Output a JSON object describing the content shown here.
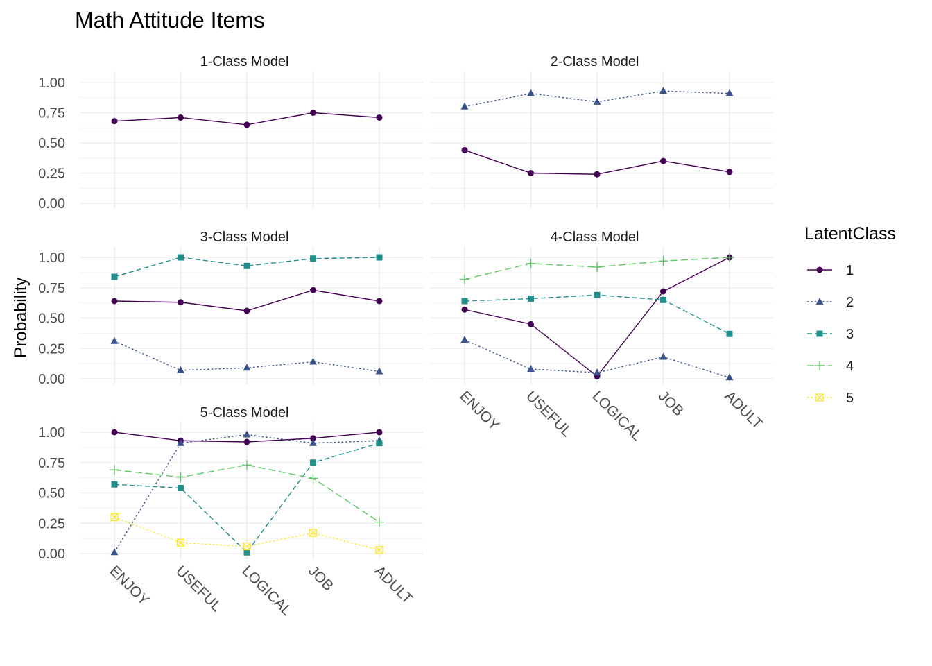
{
  "chart_data": {
    "type": "line",
    "title": "Math Attitude Items",
    "ylabel": "Probability",
    "xlabel": "",
    "categories": [
      "ENJOY",
      "USEFUL",
      "LOGICAL",
      "JOB",
      "ADULT"
    ],
    "ylim": [
      0,
      1
    ],
    "yticks": [
      "0.00",
      "0.25",
      "0.50",
      "0.75",
      "1.00"
    ],
    "grid": true,
    "legend": {
      "title": "LatentClass",
      "position": "right",
      "entries": [
        "1",
        "2",
        "3",
        "4",
        "5"
      ]
    },
    "series_styles": {
      "1": {
        "color": "#440154",
        "marker": "circle",
        "dash": "solid"
      },
      "2": {
        "color": "#3B528B",
        "marker": "triangle",
        "dash": "dotted"
      },
      "3": {
        "color": "#21908C",
        "marker": "square",
        "dash": "dashed"
      },
      "4": {
        "color": "#5DC863",
        "marker": "plus",
        "dash": "longdash"
      },
      "5": {
        "color": "#FDE725",
        "marker": "boxed-x",
        "dash": "dotted"
      }
    },
    "panels": [
      {
        "title": "1-Class Model",
        "series": [
          {
            "name": "1",
            "values": [
              0.68,
              0.71,
              0.65,
              0.75,
              0.71
            ]
          }
        ]
      },
      {
        "title": "2-Class Model",
        "series": [
          {
            "name": "1",
            "values": [
              0.44,
              0.25,
              0.24,
              0.35,
              0.26
            ]
          },
          {
            "name": "2",
            "values": [
              0.8,
              0.91,
              0.84,
              0.93,
              0.91
            ]
          }
        ]
      },
      {
        "title": "3-Class Model",
        "series": [
          {
            "name": "1",
            "values": [
              0.64,
              0.63,
              0.56,
              0.73,
              0.64
            ]
          },
          {
            "name": "2",
            "values": [
              0.31,
              0.07,
              0.09,
              0.14,
              0.06
            ]
          },
          {
            "name": "3",
            "values": [
              0.84,
              1.0,
              0.93,
              0.99,
              1.0
            ]
          }
        ]
      },
      {
        "title": "4-Class Model",
        "series": [
          {
            "name": "1",
            "values": [
              0.57,
              0.45,
              0.02,
              0.72,
              1.0
            ]
          },
          {
            "name": "2",
            "values": [
              0.32,
              0.08,
              0.05,
              0.18,
              0.01
            ]
          },
          {
            "name": "3",
            "values": [
              0.64,
              0.66,
              0.69,
              0.65,
              0.37
            ]
          },
          {
            "name": "4",
            "values": [
              0.82,
              0.95,
              0.92,
              0.97,
              1.0
            ]
          }
        ]
      },
      {
        "title": "5-Class Model",
        "series": [
          {
            "name": "1",
            "values": [
              1.0,
              0.93,
              0.92,
              0.95,
              1.0
            ]
          },
          {
            "name": "2",
            "values": [
              0.01,
              0.91,
              0.98,
              0.91,
              0.93
            ]
          },
          {
            "name": "3",
            "values": [
              0.57,
              0.54,
              0.01,
              0.75,
              0.91
            ]
          },
          {
            "name": "4",
            "values": [
              0.69,
              0.63,
              0.73,
              0.62,
              0.26
            ]
          },
          {
            "name": "5",
            "values": [
              0.3,
              0.09,
              0.06,
              0.17,
              0.03
            ]
          }
        ]
      }
    ]
  }
}
